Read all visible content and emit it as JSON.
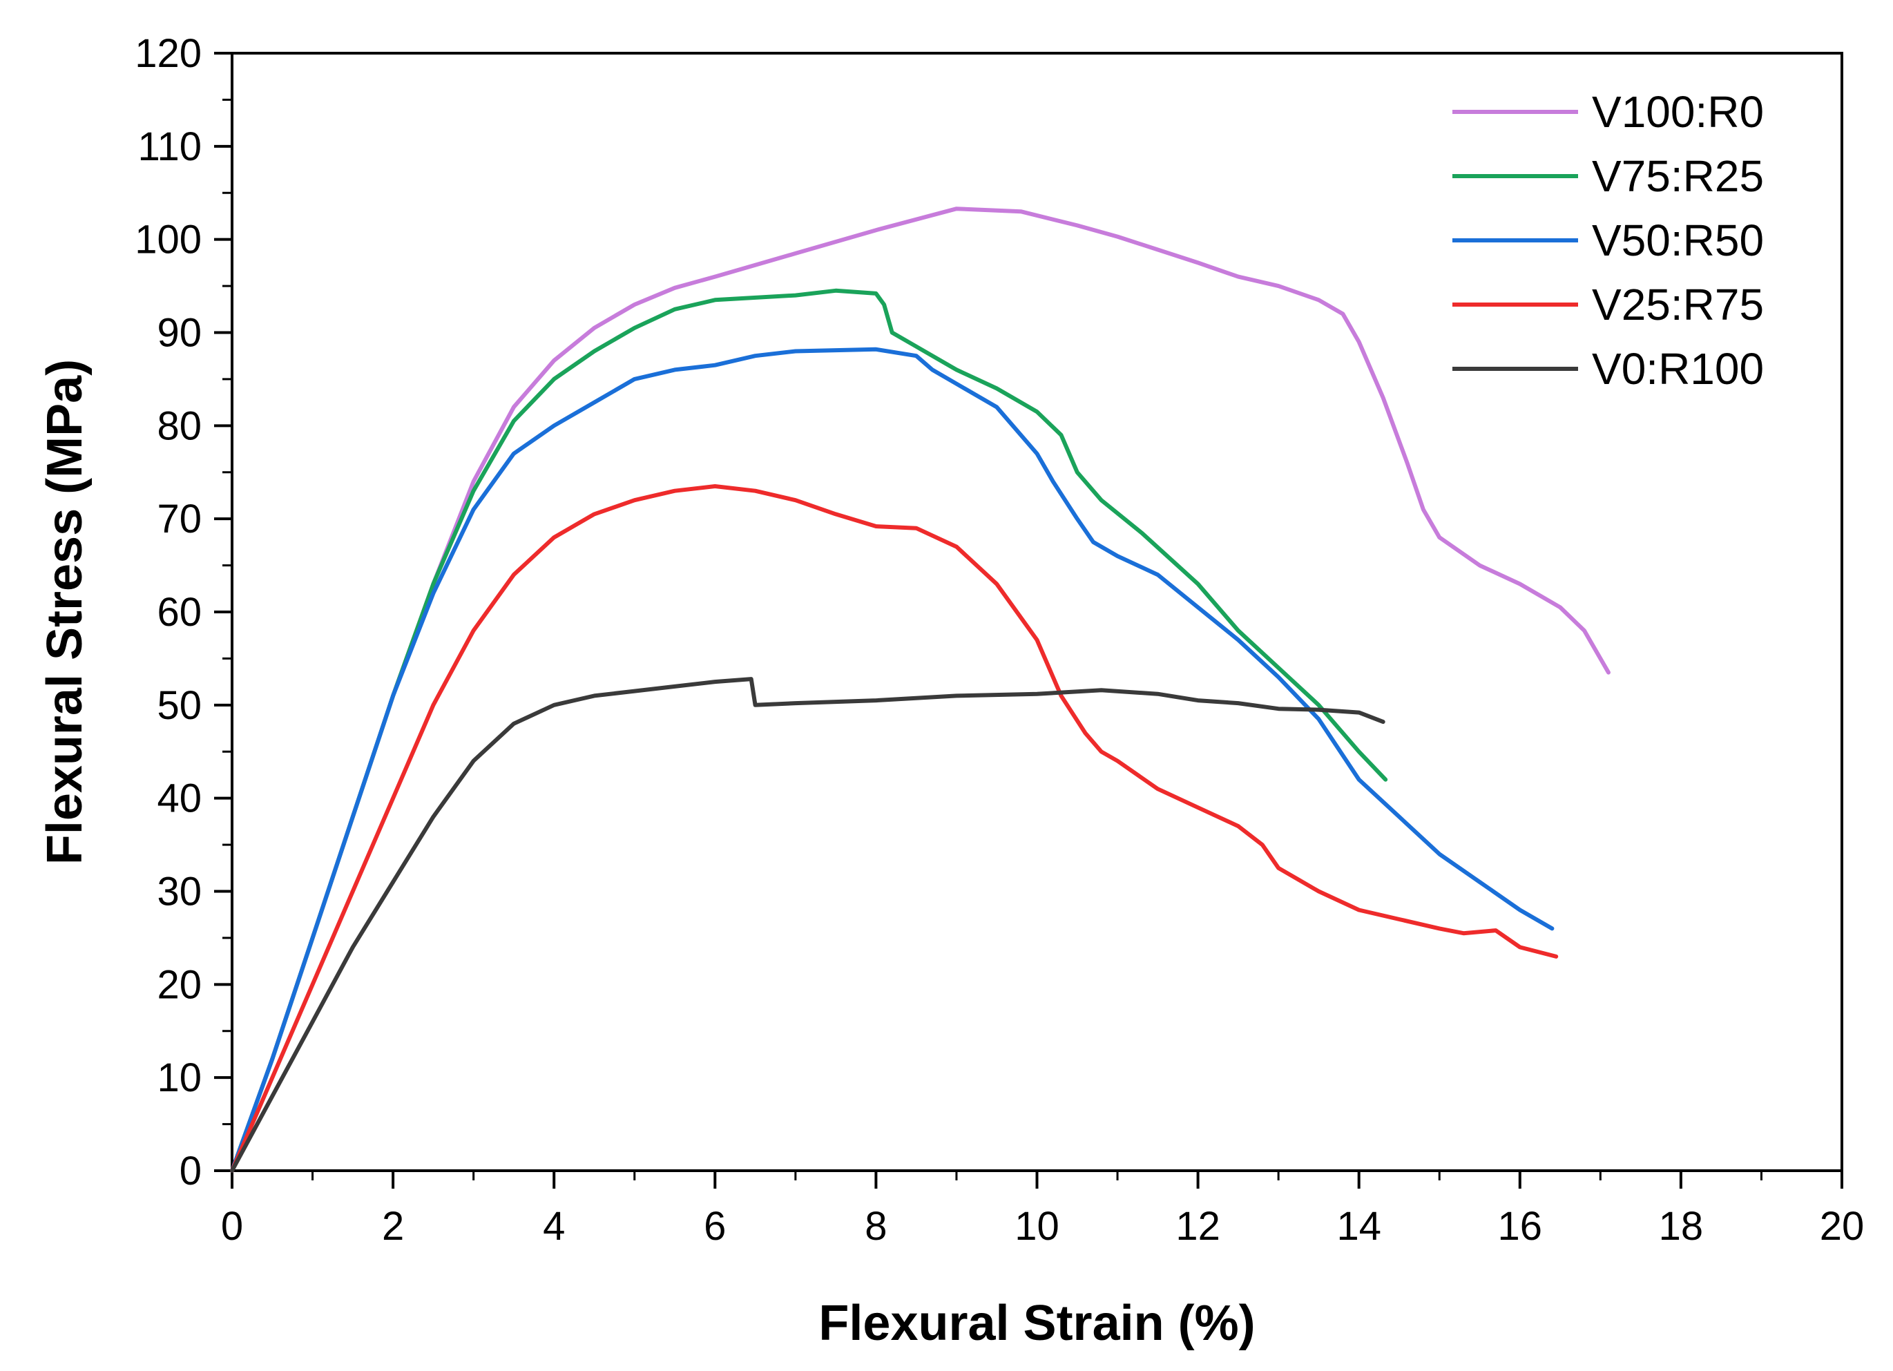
{
  "chart_data": {
    "type": "line",
    "title": "",
    "xlabel": "Flexural Strain (%)",
    "ylabel": "Flexural Stress (MPa)",
    "xlim": [
      0,
      20
    ],
    "ylim": [
      0,
      120
    ],
    "x_ticks": [
      0,
      2,
      4,
      6,
      8,
      10,
      12,
      14,
      16,
      18,
      20
    ],
    "y_ticks": [
      0,
      10,
      20,
      30,
      40,
      50,
      60,
      70,
      80,
      90,
      100,
      110,
      120
    ],
    "grid": false,
    "legend_position": "top-right",
    "series": [
      {
        "name": "V100:R0",
        "color": "#c77cdb",
        "points": [
          [
            0,
            0
          ],
          [
            0.5,
            12
          ],
          [
            1,
            25
          ],
          [
            1.5,
            38
          ],
          [
            2,
            51
          ],
          [
            2.5,
            63
          ],
          [
            3,
            74
          ],
          [
            3.5,
            82
          ],
          [
            4,
            87
          ],
          [
            4.5,
            90.5
          ],
          [
            5,
            93
          ],
          [
            5.5,
            94.8
          ],
          [
            6,
            96
          ],
          [
            7,
            98.5
          ],
          [
            8,
            101
          ],
          [
            9,
            103.3
          ],
          [
            9.8,
            103
          ],
          [
            10.5,
            101.5
          ],
          [
            11,
            100.3
          ],
          [
            12,
            97.5
          ],
          [
            12.5,
            96
          ],
          [
            13,
            95
          ],
          [
            13.5,
            93.5
          ],
          [
            13.8,
            92
          ],
          [
            14,
            89
          ],
          [
            14.3,
            83
          ],
          [
            14.6,
            76
          ],
          [
            14.8,
            71
          ],
          [
            15,
            68
          ],
          [
            15.5,
            65
          ],
          [
            16,
            63
          ],
          [
            16.5,
            60.5
          ],
          [
            16.8,
            58
          ],
          [
            17.1,
            53.5
          ]
        ]
      },
      {
        "name": "V75:R25",
        "color": "#1aa35a",
        "points": [
          [
            0,
            0
          ],
          [
            0.5,
            12
          ],
          [
            1,
            25
          ],
          [
            1.5,
            38
          ],
          [
            2,
            51
          ],
          [
            2.5,
            63
          ],
          [
            3,
            73
          ],
          [
            3.5,
            80.5
          ],
          [
            4,
            85
          ],
          [
            4.5,
            88
          ],
          [
            5,
            90.5
          ],
          [
            5.5,
            92.5
          ],
          [
            6,
            93.5
          ],
          [
            7,
            94
          ],
          [
            7.5,
            94.5
          ],
          [
            8,
            94.2
          ],
          [
            8.1,
            93
          ],
          [
            8.2,
            90
          ],
          [
            8.5,
            88.5
          ],
          [
            9,
            86
          ],
          [
            9.5,
            84
          ],
          [
            10,
            81.5
          ],
          [
            10.3,
            79
          ],
          [
            10.5,
            75
          ],
          [
            10.8,
            72
          ],
          [
            11.3,
            68.5
          ],
          [
            12,
            63
          ],
          [
            12.5,
            58
          ],
          [
            13,
            54
          ],
          [
            13.5,
            50
          ],
          [
            14,
            45
          ],
          [
            14.33,
            42
          ]
        ]
      },
      {
        "name": "V50:R50",
        "color": "#1a6fd8",
        "points": [
          [
            0,
            0
          ],
          [
            0.5,
            12
          ],
          [
            1,
            25
          ],
          [
            1.5,
            38
          ],
          [
            2,
            51
          ],
          [
            2.5,
            62
          ],
          [
            3,
            71
          ],
          [
            3.5,
            77
          ],
          [
            4,
            80
          ],
          [
            4.5,
            82.5
          ],
          [
            5,
            85
          ],
          [
            5.5,
            86
          ],
          [
            6,
            86.5
          ],
          [
            6.5,
            87.5
          ],
          [
            7,
            88
          ],
          [
            8,
            88.2
          ],
          [
            8.5,
            87.5
          ],
          [
            8.7,
            86
          ],
          [
            9,
            84.5
          ],
          [
            9.5,
            82
          ],
          [
            10,
            77
          ],
          [
            10.2,
            74
          ],
          [
            10.5,
            70
          ],
          [
            10.7,
            67.5
          ],
          [
            11,
            66
          ],
          [
            11.5,
            64
          ],
          [
            12,
            60.5
          ],
          [
            12.5,
            57
          ],
          [
            13,
            53
          ],
          [
            13.5,
            48.5
          ],
          [
            14,
            42
          ],
          [
            14.5,
            38
          ],
          [
            15,
            34
          ],
          [
            15.5,
            31
          ],
          [
            16,
            28
          ],
          [
            16.4,
            26
          ]
        ]
      },
      {
        "name": "V25:R75",
        "color": "#ee2b2b",
        "points": [
          [
            0,
            0
          ],
          [
            0.5,
            10
          ],
          [
            1,
            20
          ],
          [
            1.5,
            30
          ],
          [
            2,
            40
          ],
          [
            2.5,
            50
          ],
          [
            3,
            58
          ],
          [
            3.5,
            64
          ],
          [
            4,
            68
          ],
          [
            4.5,
            70.5
          ],
          [
            5,
            72
          ],
          [
            5.5,
            73
          ],
          [
            6,
            73.5
          ],
          [
            6.5,
            73
          ],
          [
            7,
            72
          ],
          [
            7.5,
            70.5
          ],
          [
            8,
            69.2
          ],
          [
            8.5,
            69
          ],
          [
            9,
            67
          ],
          [
            9.5,
            63
          ],
          [
            10,
            57
          ],
          [
            10.3,
            51
          ],
          [
            10.6,
            47
          ],
          [
            10.8,
            45
          ],
          [
            11,
            44
          ],
          [
            11.5,
            41
          ],
          [
            12,
            39
          ],
          [
            12.5,
            37
          ],
          [
            12.8,
            35
          ],
          [
            13,
            32.5
          ],
          [
            13.5,
            30
          ],
          [
            14,
            28
          ],
          [
            14.5,
            27
          ],
          [
            15,
            26
          ],
          [
            15.3,
            25.5
          ],
          [
            15.7,
            25.8
          ],
          [
            16,
            24
          ],
          [
            16.45,
            23
          ]
        ]
      },
      {
        "name": "V0:R100",
        "color": "#3a3a3a",
        "points": [
          [
            0,
            0
          ],
          [
            0.5,
            8
          ],
          [
            1,
            16
          ],
          [
            1.5,
            24
          ],
          [
            2,
            31
          ],
          [
            2.5,
            38
          ],
          [
            3,
            44
          ],
          [
            3.5,
            48
          ],
          [
            4,
            50
          ],
          [
            4.5,
            51
          ],
          [
            5,
            51.5
          ],
          [
            5.5,
            52
          ],
          [
            6,
            52.5
          ],
          [
            6.45,
            52.8
          ],
          [
            6.5,
            50
          ],
          [
            7,
            50.2
          ],
          [
            8,
            50.5
          ],
          [
            9,
            51
          ],
          [
            10,
            51.2
          ],
          [
            10.8,
            51.6
          ],
          [
            11.5,
            51.2
          ],
          [
            12,
            50.5
          ],
          [
            12.5,
            50.2
          ],
          [
            13,
            49.6
          ],
          [
            13.5,
            49.5
          ],
          [
            14,
            49.2
          ],
          [
            14.3,
            48.2
          ]
        ]
      }
    ]
  }
}
